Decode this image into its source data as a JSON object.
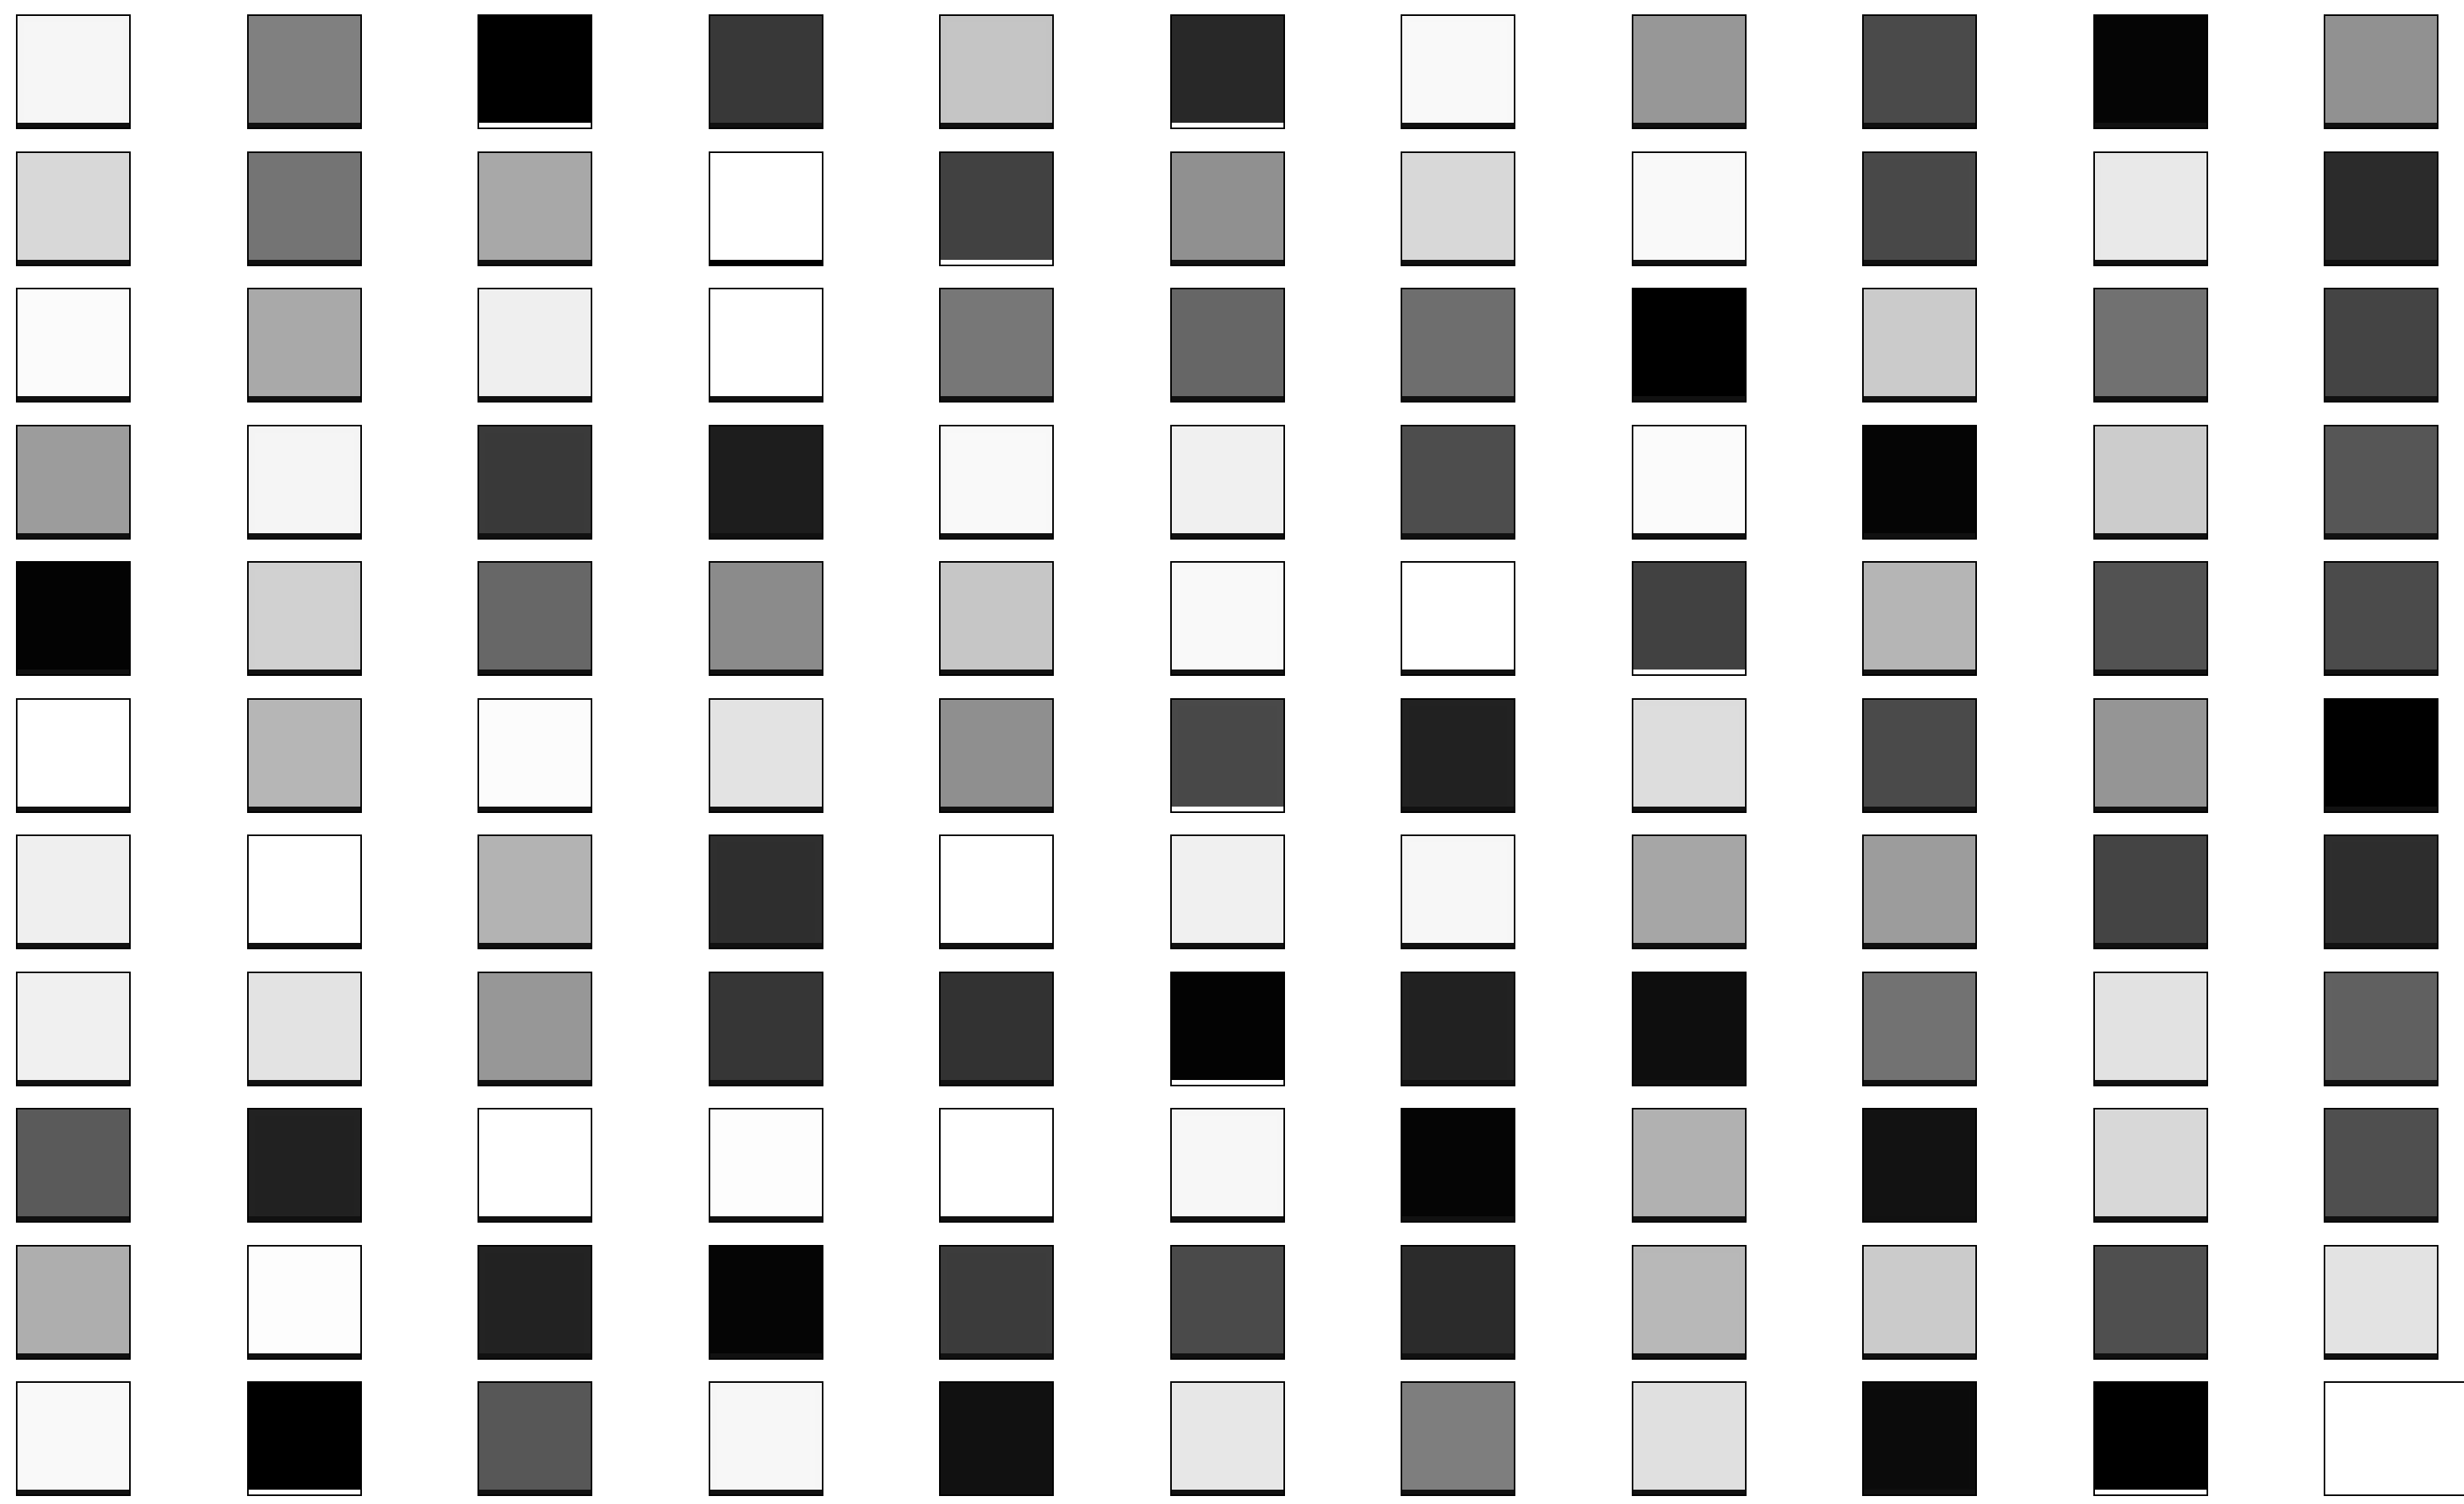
{
  "grid": {
    "rows": 11,
    "cols": 11,
    "tiles": [
      [
        {
          "fill": "#f5f5f5",
          "strip": "#111111"
        },
        {
          "fill": "#808080",
          "strip": "#111111"
        },
        {
          "fill": "#000000",
          "strip": "#ffffff"
        },
        {
          "fill": "#383838",
          "strip": "#111111"
        },
        {
          "fill": "#c4c4c4",
          "strip": "#111111"
        },
        {
          "fill": "#282828",
          "strip": "#ffffff"
        },
        {
          "fill": "#f8f8f8",
          "strip": "#111111"
        },
        {
          "fill": "#979797",
          "strip": "#111111"
        },
        {
          "fill": "#4a4a4a",
          "strip": "#111111"
        },
        {
          "fill": "#050505",
          "strip": "#111111"
        },
        {
          "fill": "#919191",
          "strip": "#111111"
        }
      ],
      [
        {
          "fill": "#d8d8d8",
          "strip": "#111111"
        },
        {
          "fill": "#747474",
          "strip": "#111111"
        },
        {
          "fill": "#a8a8a8",
          "strip": "#111111"
        },
        {
          "fill": "#ffffff",
          "strip": "#000000"
        },
        {
          "fill": "#414141",
          "strip": "#ffffff"
        },
        {
          "fill": "#909090",
          "strip": "#111111"
        },
        {
          "fill": "#d8d8d8",
          "strip": "#111111"
        },
        {
          "fill": "#f8f8f8",
          "strip": "#111111"
        },
        {
          "fill": "#494949",
          "strip": "#111111"
        },
        {
          "fill": "#e8e8e8",
          "strip": "#111111"
        },
        {
          "fill": "#2b2b2b",
          "strip": "#111111"
        }
      ],
      [
        {
          "fill": "#fbfbfb",
          "strip": "#111111"
        },
        {
          "fill": "#a9a9a9",
          "strip": "#111111"
        },
        {
          "fill": "#efefef",
          "strip": "#111111"
        },
        {
          "fill": "#ffffff",
          "strip": "#111111"
        },
        {
          "fill": "#777777",
          "strip": "#111111"
        },
        {
          "fill": "#666666",
          "strip": "#111111"
        },
        {
          "fill": "#6e6e6e",
          "strip": "#111111"
        },
        {
          "fill": "#000000",
          "strip": "#111111"
        },
        {
          "fill": "#cbcbcb",
          "strip": "#111111"
        },
        {
          "fill": "#717171",
          "strip": "#111111"
        },
        {
          "fill": "#444444",
          "strip": "#111111"
        }
      ],
      [
        {
          "fill": "#9c9c9c",
          "strip": "#111111"
        },
        {
          "fill": "#f4f4f4",
          "strip": "#111111"
        },
        {
          "fill": "#3a3a3a",
          "strip": "#111111"
        },
        {
          "fill": "#1d1d1d",
          "strip": "#111111"
        },
        {
          "fill": "#f8f8f8",
          "strip": "#111111"
        },
        {
          "fill": "#f0f0f0",
          "strip": "#111111"
        },
        {
          "fill": "#4d4d4d",
          "strip": "#111111"
        },
        {
          "fill": "#fbfbfb",
          "strip": "#111111"
        },
        {
          "fill": "#050505",
          "strip": "#111111"
        },
        {
          "fill": "#cccccc",
          "strip": "#111111"
        },
        {
          "fill": "#565656",
          "strip": "#111111"
        }
      ],
      [
        {
          "fill": "#030303",
          "strip": "#111111"
        },
        {
          "fill": "#d0d0d0",
          "strip": "#111111"
        },
        {
          "fill": "#676767",
          "strip": "#111111"
        },
        {
          "fill": "#8b8b8b",
          "strip": "#111111"
        },
        {
          "fill": "#c6c6c6",
          "strip": "#111111"
        },
        {
          "fill": "#f8f8f8",
          "strip": "#111111"
        },
        {
          "fill": "#ffffff",
          "strip": "#111111"
        },
        {
          "fill": "#414141",
          "strip": "#ffffff"
        },
        {
          "fill": "#b5b5b5",
          "strip": "#111111"
        },
        {
          "fill": "#525252",
          "strip": "#111111"
        },
        {
          "fill": "#4b4b4b",
          "strip": "#111111"
        }
      ],
      [
        {
          "fill": "#ffffff",
          "strip": "#111111"
        },
        {
          "fill": "#b6b6b6",
          "strip": "#111111"
        },
        {
          "fill": "#fcfcfc",
          "strip": "#111111"
        },
        {
          "fill": "#e3e3e3",
          "strip": "#111111"
        },
        {
          "fill": "#8f8f8f",
          "strip": "#111111"
        },
        {
          "fill": "#494949",
          "strip": "#ffffff"
        },
        {
          "fill": "#222222",
          "strip": "#111111"
        },
        {
          "fill": "#dcdcdc",
          "strip": "#111111"
        },
        {
          "fill": "#4a4a4a",
          "strip": "#111111"
        },
        {
          "fill": "#959595",
          "strip": "#111111"
        },
        {
          "fill": "#000000",
          "strip": "#111111"
        }
      ],
      [
        {
          "fill": "#efefef",
          "strip": "#111111"
        },
        {
          "fill": "#ffffff",
          "strip": "#111111"
        },
        {
          "fill": "#b3b3b3",
          "strip": "#111111"
        },
        {
          "fill": "#2f2f2f",
          "strip": "#111111"
        },
        {
          "fill": "#ffffff",
          "strip": "#111111"
        },
        {
          "fill": "#f0f0f0",
          "strip": "#111111"
        },
        {
          "fill": "#f6f6f6",
          "strip": "#111111"
        },
        {
          "fill": "#a6a6a6",
          "strip": "#111111"
        },
        {
          "fill": "#9c9c9c",
          "strip": "#111111"
        },
        {
          "fill": "#444444",
          "strip": "#111111"
        },
        {
          "fill": "#2e2e2e",
          "strip": "#111111"
        }
      ],
      [
        {
          "fill": "#f0f0f0",
          "strip": "#111111"
        },
        {
          "fill": "#e3e3e3",
          "strip": "#111111"
        },
        {
          "fill": "#979797",
          "strip": "#111111"
        },
        {
          "fill": "#363636",
          "strip": "#111111"
        },
        {
          "fill": "#323232",
          "strip": "#111111"
        },
        {
          "fill": "#030303",
          "strip": "#ffffff"
        },
        {
          "fill": "#222222",
          "strip": "#111111"
        },
        {
          "fill": "#0e0e0e",
          "strip": "#111111"
        },
        {
          "fill": "#727272",
          "strip": "#111111"
        },
        {
          "fill": "#e2e2e2",
          "strip": "#111111"
        },
        {
          "fill": "#616161",
          "strip": "#111111"
        }
      ],
      [
        {
          "fill": "#5a5a5a",
          "strip": "#111111"
        },
        {
          "fill": "#222222",
          "strip": "#111111"
        },
        {
          "fill": "#ffffff",
          "strip": "#111111"
        },
        {
          "fill": "#fdfdfd",
          "strip": "#111111"
        },
        {
          "fill": "#ffffff",
          "strip": "#111111"
        },
        {
          "fill": "#f6f6f6",
          "strip": "#111111"
        },
        {
          "fill": "#050505",
          "strip": "#111111"
        },
        {
          "fill": "#b1b1b1",
          "strip": "#111111"
        },
        {
          "fill": "#121212",
          "strip": "#111111"
        },
        {
          "fill": "#d8d8d8",
          "strip": "#111111"
        },
        {
          "fill": "#4f4f4f",
          "strip": "#111111"
        }
      ],
      [
        {
          "fill": "#aeaeae",
          "strip": "#111111"
        },
        {
          "fill": "#fdfdfd",
          "strip": "#111111"
        },
        {
          "fill": "#232323",
          "strip": "#111111"
        },
        {
          "fill": "#050505",
          "strip": "#111111"
        },
        {
          "fill": "#3c3c3c",
          "strip": "#111111"
        },
        {
          "fill": "#4a4a4a",
          "strip": "#111111"
        },
        {
          "fill": "#2b2b2b",
          "strip": "#111111"
        },
        {
          "fill": "#b7b7b7",
          "strip": "#111111"
        },
        {
          "fill": "#cbcbcb",
          "strip": "#111111"
        },
        {
          "fill": "#4f4f4f",
          "strip": "#111111"
        },
        {
          "fill": "#e3e3e3",
          "strip": "#111111"
        }
      ],
      [
        {
          "fill": "#f9f9f9",
          "strip": "#111111"
        },
        {
          "fill": "#000000",
          "strip": "#ffffff"
        },
        {
          "fill": "#575757",
          "strip": "#111111"
        },
        {
          "fill": "#f6f6f6",
          "strip": "#111111"
        },
        {
          "fill": "#111111",
          "strip": "#111111"
        },
        {
          "fill": "#e7e7e7",
          "strip": "#111111"
        },
        {
          "fill": "#7e7e7e",
          "strip": "#111111"
        },
        {
          "fill": "#e0e0e0",
          "strip": "#111111"
        },
        {
          "fill": "#0c0c0c",
          "strip": "#111111"
        },
        {
          "fill": "#000000",
          "strip": "#ffffff"
        },
        {
          "fill": "#ffffff",
          "strip": "#ffffff"
        }
      ]
    ]
  }
}
